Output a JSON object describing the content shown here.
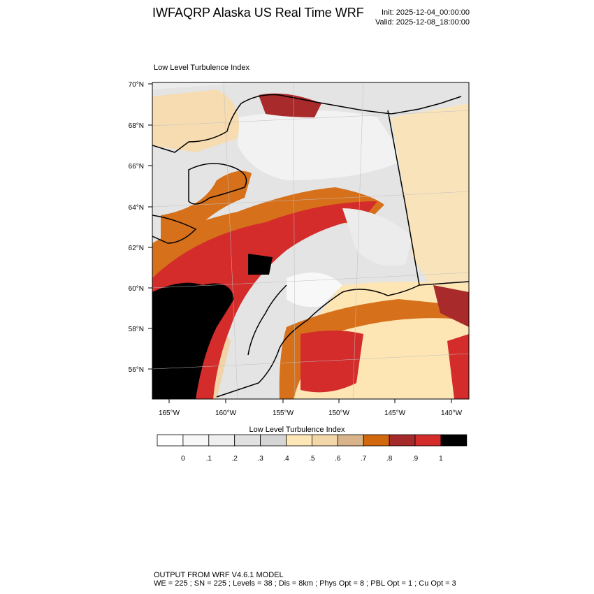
{
  "header": {
    "title": "IWFAQRP Alaska US Real Time WRF",
    "init": "Init: 2025-12-04_00:00:00",
    "valid": "Valid: 2025-12-08_18:00:00"
  },
  "field_title": "Low Level Turbulence Index",
  "map": {
    "lat_labels": [
      "70°N",
      "68°N",
      "66°N",
      "64°N",
      "62°N",
      "60°N",
      "58°N",
      "56°N"
    ],
    "lon_labels": [
      "165°W",
      "160°W",
      "155°W",
      "150°W",
      "145°W",
      "140°W"
    ],
    "colors": {
      "frame": "#000000",
      "low": "#e6e6e6",
      "mid": "#fbe3b4",
      "orange": "#d86a0e",
      "red": "#d42b2b",
      "dark_red": "#a82a2a",
      "black": "#000000"
    }
  },
  "colorbar": {
    "title": "Low Level Turbulence Index",
    "labels": [
      "0",
      ".1",
      ".2",
      ".3",
      ".4",
      ".5",
      ".6",
      ".7",
      ".8",
      ".9",
      "1"
    ],
    "colors": [
      "#ffffff",
      "#f7f7f7",
      "#efefef",
      "#e1e1e1",
      "#d5d5d5",
      "#fde7b6",
      "#f3d7a8",
      "#d9b48a",
      "#d2680e",
      "#a52a2a",
      "#d42b2b",
      "#000000"
    ]
  },
  "footer": {
    "line1": "OUTPUT FROM WRF V4.6.1 MODEL",
    "line2": "WE = 225 ; SN = 225 ; Levels = 38 ; Dis = 8km ; Phys Opt = 8 ; PBL Opt = 1 ; Cu Opt = 3"
  }
}
